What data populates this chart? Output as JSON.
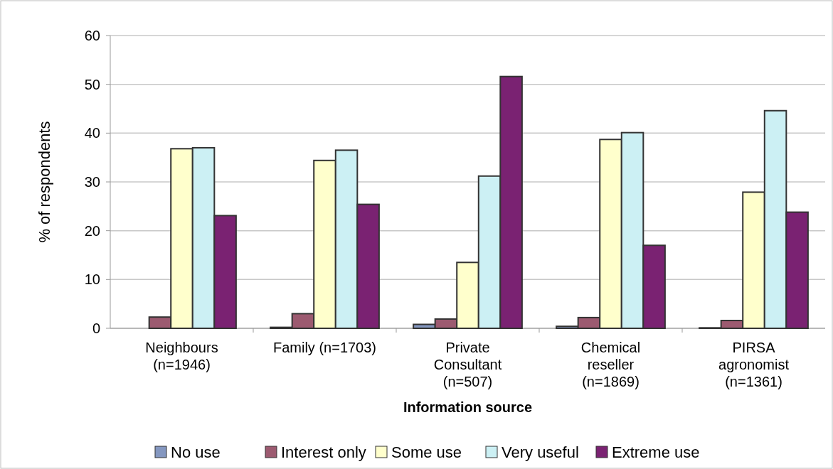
{
  "chart_data": {
    "type": "bar",
    "xlabel": "Information source",
    "ylabel": "% of respondents",
    "categories": [
      "Neighbours (n=1946)",
      "Family (n=1703)",
      "Private Consultant (n=507)",
      "Chemical reseller (n=1869)",
      "PIRSA agronomist (n=1361)"
    ],
    "series": [
      {
        "name": "No use",
        "color": "#8497c0",
        "values": [
          0,
          0.2,
          0.8,
          0.4,
          0.1
        ]
      },
      {
        "name": "Interest only",
        "color": "#9c5a70",
        "values": [
          2.3,
          3.0,
          1.9,
          2.2,
          1.6
        ]
      },
      {
        "name": "Some use",
        "color": "#ffffcc",
        "values": [
          36.8,
          34.4,
          13.5,
          38.7,
          27.9
        ]
      },
      {
        "name": "Very useful",
        "color": "#ccf0f4",
        "values": [
          37.0,
          36.5,
          31.2,
          40.1,
          44.6
        ]
      },
      {
        "name": "Extreme use",
        "color": "#7a2272",
        "values": [
          23.1,
          25.4,
          51.6,
          17.0,
          23.8
        ]
      }
    ],
    "ylim": [
      0,
      60
    ],
    "yticks": [
      0,
      10,
      20,
      30,
      40,
      50,
      60
    ],
    "grid": "y",
    "legend": "bottom"
  }
}
